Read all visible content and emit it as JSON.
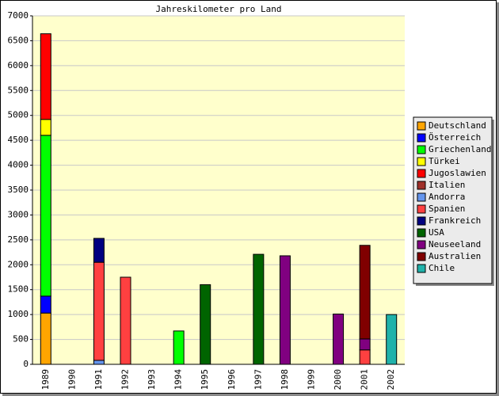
{
  "chart_data": {
    "type": "bar",
    "stacked": true,
    "title": "Jahreskilometer pro Land",
    "categories": [
      "1989",
      "1990",
      "1991",
      "1992",
      "1993",
      "1994",
      "1995",
      "1996",
      "1997",
      "1998",
      "1999",
      "2000",
      "2001",
      "2002"
    ],
    "series": [
      {
        "name": "Deutschland",
        "color": "#ffa500",
        "values": [
          1030,
          null,
          null,
          null,
          null,
          null,
          null,
          null,
          null,
          null,
          null,
          null,
          null,
          null
        ]
      },
      {
        "name": "Österreich",
        "color": "#0000ff",
        "values": [
          340,
          null,
          null,
          null,
          null,
          null,
          null,
          null,
          null,
          null,
          null,
          null,
          null,
          null
        ]
      },
      {
        "name": "Griechenland",
        "color": "#00ff00",
        "values": [
          3230,
          null,
          null,
          null,
          null,
          670,
          null,
          null,
          null,
          null,
          null,
          null,
          null,
          null
        ]
      },
      {
        "name": "Türkei",
        "color": "#ffff00",
        "values": [
          320,
          null,
          null,
          null,
          null,
          null,
          null,
          null,
          null,
          null,
          null,
          null,
          null,
          null
        ]
      },
      {
        "name": "Jugoslawien",
        "color": "#ff0000",
        "values": [
          1720,
          null,
          null,
          null,
          null,
          null,
          null,
          null,
          null,
          null,
          null,
          null,
          null,
          null
        ]
      },
      {
        "name": "Italien",
        "color": "#a0302a",
        "values": [
          null,
          null,
          null,
          null,
          null,
          null,
          null,
          null,
          null,
          null,
          null,
          null,
          null,
          null
        ]
      },
      {
        "name": "Andorra",
        "color": "#6495ed",
        "values": [
          null,
          null,
          80,
          null,
          null,
          null,
          null,
          null,
          null,
          null,
          null,
          null,
          null,
          null
        ]
      },
      {
        "name": "Spanien",
        "color": "#ff4040",
        "values": [
          null,
          null,
          1970,
          1750,
          null,
          null,
          null,
          null,
          null,
          null,
          null,
          null,
          290,
          null
        ]
      },
      {
        "name": "Frankreich",
        "color": "#000080",
        "values": [
          null,
          null,
          480,
          null,
          null,
          null,
          null,
          null,
          null,
          null,
          null,
          null,
          null,
          null
        ]
      },
      {
        "name": "USA",
        "color": "#006400",
        "values": [
          null,
          null,
          null,
          null,
          null,
          null,
          1600,
          null,
          2210,
          null,
          null,
          null,
          null,
          null
        ]
      },
      {
        "name": "Neuseeland",
        "color": "#800080",
        "values": [
          null,
          null,
          null,
          null,
          null,
          null,
          null,
          null,
          null,
          2180,
          null,
          1010,
          220,
          null
        ]
      },
      {
        "name": "Australien",
        "color": "#800000",
        "values": [
          null,
          null,
          null,
          null,
          null,
          null,
          null,
          null,
          null,
          null,
          null,
          null,
          1880,
          null
        ]
      },
      {
        "name": "Chile",
        "color": "#20b2aa",
        "values": [
          null,
          null,
          null,
          null,
          null,
          null,
          null,
          null,
          null,
          null,
          null,
          null,
          null,
          1000
        ]
      }
    ],
    "ylim": [
      0,
      7000
    ],
    "yticks": [
      0,
      500,
      1000,
      1500,
      2000,
      2500,
      3000,
      3500,
      4000,
      4500,
      5000,
      5500,
      6000,
      6500,
      7000
    ],
    "grid": true,
    "legend": "right"
  }
}
